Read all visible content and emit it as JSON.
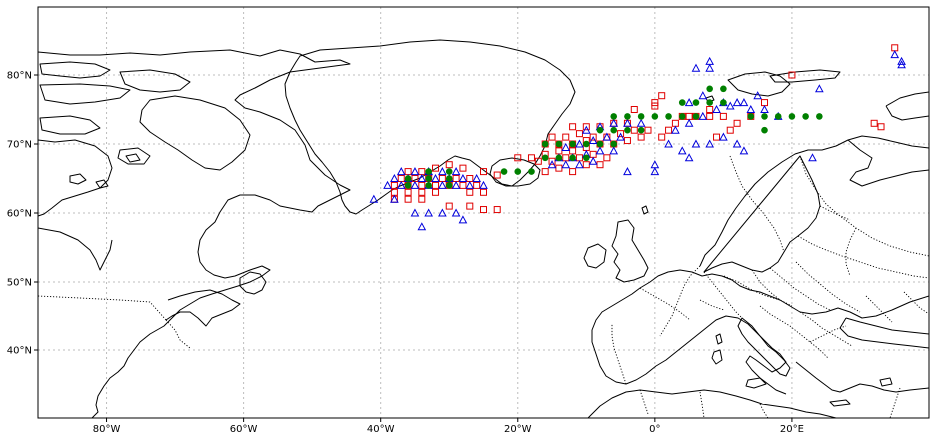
{
  "chart_data": {
    "type": "scatter",
    "title": "",
    "xlabel": "",
    "ylabel": "",
    "xlim": [
      -90,
      40
    ],
    "ylim": [
      30,
      90
    ],
    "grid": true,
    "x_ticks": [
      {
        "value": -80,
        "label": "80°W"
      },
      {
        "value": -60,
        "label": "60°W"
      },
      {
        "value": -40,
        "label": "40°W"
      },
      {
        "value": -20,
        "label": "20°W"
      },
      {
        "value": 0,
        "label": "0°"
      },
      {
        "value": 20,
        "label": "20°E"
      }
    ],
    "y_ticks": [
      {
        "value": 40,
        "label": "40°N"
      },
      {
        "value": 50,
        "label": "50°N"
      },
      {
        "value": 60,
        "label": "60°N"
      },
      {
        "value": 70,
        "label": "70°N"
      },
      {
        "value": 80,
        "label": "80°N"
      }
    ],
    "series": [
      {
        "marker": "square",
        "color": "#e00000",
        "points": [
          [
            -38,
            62
          ],
          [
            -36,
            62
          ],
          [
            -34,
            62
          ],
          [
            -30,
            61
          ],
          [
            -27,
            61
          ],
          [
            -25,
            60.5
          ],
          [
            -23,
            60.5
          ],
          [
            -38,
            63
          ],
          [
            -36,
            63
          ],
          [
            -34,
            63
          ],
          [
            -32,
            63
          ],
          [
            -27,
            63
          ],
          [
            -25,
            63
          ],
          [
            -38,
            64
          ],
          [
            -36,
            64
          ],
          [
            -34,
            64
          ],
          [
            -32,
            64
          ],
          [
            -30,
            64
          ],
          [
            -28,
            64
          ],
          [
            -26,
            64
          ],
          [
            -37,
            65
          ],
          [
            -35,
            65
          ],
          [
            -33,
            65
          ],
          [
            -31,
            65
          ],
          [
            -29,
            65
          ],
          [
            -27,
            65
          ],
          [
            -25,
            66
          ],
          [
            -23,
            65.5
          ],
          [
            -36,
            66
          ],
          [
            -34,
            66
          ],
          [
            -32,
            66.5
          ],
          [
            -30,
            67
          ],
          [
            -28,
            66.5
          ],
          [
            -16,
            66
          ],
          [
            -14,
            66.5
          ],
          [
            -12,
            66
          ],
          [
            -10,
            67
          ],
          [
            -8,
            67
          ],
          [
            -17,
            67.5
          ],
          [
            -15,
            67.5
          ],
          [
            -13,
            68
          ],
          [
            -11,
            68
          ],
          [
            -9,
            68.5
          ],
          [
            -7,
            68
          ],
          [
            -20,
            68
          ],
          [
            -18,
            68
          ],
          [
            -16,
            68.5
          ],
          [
            -14,
            69
          ],
          [
            -12,
            69
          ],
          [
            -10,
            69.5
          ],
          [
            -16,
            70
          ],
          [
            -14,
            70
          ],
          [
            -12,
            70
          ],
          [
            -10,
            70.5
          ],
          [
            -8,
            70
          ],
          [
            -6,
            70
          ],
          [
            -4,
            70.5
          ],
          [
            -2,
            71
          ],
          [
            -15,
            71
          ],
          [
            -13,
            71
          ],
          [
            -11,
            71.5
          ],
          [
            -9,
            71
          ],
          [
            -7,
            71
          ],
          [
            -5,
            71.5
          ],
          [
            -3,
            72
          ],
          [
            -1,
            72
          ],
          [
            -12,
            72.5
          ],
          [
            -10,
            72.5
          ],
          [
            -8,
            72.5
          ],
          [
            -6,
            73
          ],
          [
            -4,
            73
          ],
          [
            1,
            71
          ],
          [
            2,
            72
          ],
          [
            3,
            73
          ],
          [
            4,
            74
          ],
          [
            6,
            74
          ],
          [
            8,
            74
          ],
          [
            10,
            74
          ],
          [
            -3,
            75
          ],
          [
            0,
            75.5
          ],
          [
            0,
            76
          ],
          [
            1,
            77
          ],
          [
            5,
            74
          ],
          [
            8,
            75
          ],
          [
            9,
            71
          ],
          [
            11,
            72
          ],
          [
            12,
            73
          ],
          [
            14,
            74
          ],
          [
            16,
            76
          ],
          [
            32,
            73
          ],
          [
            33,
            72.5
          ],
          [
            20,
            80
          ],
          [
            35,
            84
          ]
        ]
      },
      {
        "marker": "triangle",
        "color": "#0000dd",
        "points": [
          [
            -41,
            62
          ],
          [
            -38,
            62
          ],
          [
            -35,
            60
          ],
          [
            -33,
            60
          ],
          [
            -31,
            60
          ],
          [
            -29,
            60
          ],
          [
            -28,
            59
          ],
          [
            -34,
            58
          ],
          [
            -39,
            64
          ],
          [
            -37,
            64
          ],
          [
            -35,
            64
          ],
          [
            -33,
            64
          ],
          [
            -31,
            64
          ],
          [
            -29,
            64
          ],
          [
            -27,
            64
          ],
          [
            -25,
            64
          ],
          [
            -38,
            65
          ],
          [
            -36,
            65
          ],
          [
            -34,
            65
          ],
          [
            -32,
            65
          ],
          [
            -30,
            65
          ],
          [
            -28,
            65
          ],
          [
            -26,
            65
          ],
          [
            -37,
            66
          ],
          [
            -35,
            66
          ],
          [
            -33,
            66
          ],
          [
            -31,
            66
          ],
          [
            -29,
            66
          ],
          [
            -15,
            67
          ],
          [
            -13,
            67
          ],
          [
            -11,
            67
          ],
          [
            -9,
            67.5
          ],
          [
            -14,
            68
          ],
          [
            -12,
            68
          ],
          [
            -10,
            68.5
          ],
          [
            -8,
            69
          ],
          [
            -6,
            69
          ],
          [
            -13,
            69.5
          ],
          [
            -11,
            70
          ],
          [
            -9,
            70.5
          ],
          [
            -7,
            71
          ],
          [
            -5,
            71
          ],
          [
            -10,
            72
          ],
          [
            -8,
            72.5
          ],
          [
            -6,
            73
          ],
          [
            -4,
            73
          ],
          [
            -2,
            73
          ],
          [
            -4,
            66
          ],
          [
            0,
            66
          ],
          [
            0,
            67
          ],
          [
            5,
            68
          ],
          [
            2,
            70
          ],
          [
            4,
            69
          ],
          [
            6,
            70
          ],
          [
            8,
            70
          ],
          [
            10,
            71
          ],
          [
            12,
            70
          ],
          [
            13,
            69
          ],
          [
            3,
            72
          ],
          [
            5,
            73
          ],
          [
            7,
            74
          ],
          [
            9,
            75
          ],
          [
            11,
            75.5
          ],
          [
            13,
            76
          ],
          [
            15,
            77
          ],
          [
            5,
            76
          ],
          [
            7,
            77
          ],
          [
            10,
            76
          ],
          [
            12,
            76
          ],
          [
            14,
            75
          ],
          [
            16,
            75
          ],
          [
            18,
            74
          ],
          [
            6,
            81
          ],
          [
            8,
            82
          ],
          [
            8,
            81
          ],
          [
            24,
            78
          ],
          [
            23,
            68
          ],
          [
            35,
            83
          ],
          [
            36,
            82
          ],
          [
            36,
            81.5
          ]
        ]
      },
      {
        "marker": "circle",
        "color": "#008000",
        "points": [
          [
            -36,
            64
          ],
          [
            -33,
            64
          ],
          [
            -30,
            64
          ],
          [
            -36,
            65
          ],
          [
            -33,
            65
          ],
          [
            -30,
            65
          ],
          [
            -33,
            66
          ],
          [
            -30,
            66
          ],
          [
            -22,
            66
          ],
          [
            -20,
            66
          ],
          [
            -18,
            66
          ],
          [
            -16,
            68
          ],
          [
            -14,
            68
          ],
          [
            -12,
            68
          ],
          [
            -10,
            68
          ],
          [
            -16,
            70
          ],
          [
            -14,
            70
          ],
          [
            -12,
            70
          ],
          [
            -10,
            70
          ],
          [
            -8,
            70
          ],
          [
            -6,
            70
          ],
          [
            -8,
            72
          ],
          [
            -6,
            72
          ],
          [
            -4,
            72
          ],
          [
            -2,
            72
          ],
          [
            -6,
            74
          ],
          [
            -4,
            74
          ],
          [
            -2,
            74
          ],
          [
            0,
            74
          ],
          [
            2,
            74
          ],
          [
            4,
            74
          ],
          [
            6,
            74
          ],
          [
            4,
            76
          ],
          [
            6,
            76
          ],
          [
            8,
            76
          ],
          [
            10,
            76
          ],
          [
            8,
            78
          ],
          [
            10,
            78
          ],
          [
            14,
            74
          ],
          [
            16,
            74
          ],
          [
            18,
            74
          ],
          [
            20,
            74
          ],
          [
            22,
            74
          ],
          [
            24,
            74
          ],
          [
            16,
            72
          ]
        ]
      }
    ]
  }
}
